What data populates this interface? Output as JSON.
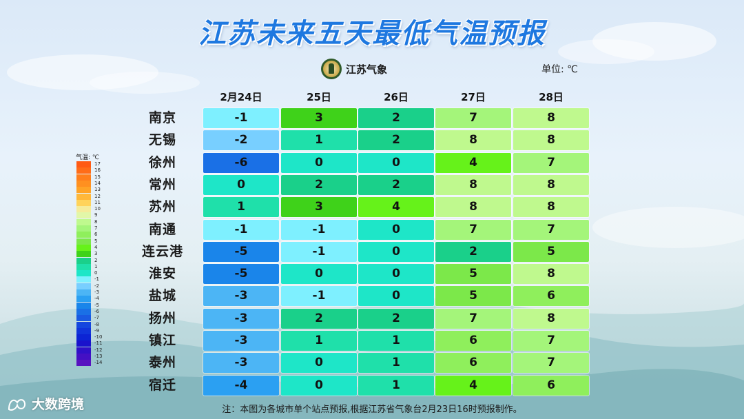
{
  "title": "江苏未来五天最低气温预报",
  "logo_text": "江苏气象",
  "unit_label": "单位: ℃",
  "legend_title": "气温: ℃",
  "note": "注：本图为各城市单个站点预报,根据江苏省气象台2月23日16时预报制作。",
  "brand": "大数跨境",
  "chart_data": {
    "type": "table",
    "columns": [
      "2月24日",
      "25日",
      "26日",
      "27日",
      "28日"
    ],
    "rows": [
      {
        "city": "南京",
        "values": [
          -1,
          3,
          2,
          7,
          8
        ]
      },
      {
        "city": "无锡",
        "values": [
          -2,
          1,
          2,
          8,
          8
        ]
      },
      {
        "city": "徐州",
        "values": [
          -6,
          0,
          0,
          4,
          7
        ]
      },
      {
        "city": "常州",
        "values": [
          0,
          2,
          2,
          8,
          8
        ]
      },
      {
        "city": "苏州",
        "values": [
          1,
          3,
          4,
          8,
          8
        ]
      },
      {
        "city": "南通",
        "values": [
          -1,
          -1,
          0,
          7,
          7
        ]
      },
      {
        "city": "连云港",
        "values": [
          -5,
          -1,
          0,
          2,
          5
        ]
      },
      {
        "city": "淮安",
        "values": [
          -5,
          0,
          0,
          5,
          8
        ]
      },
      {
        "city": "盐城",
        "values": [
          -3,
          -1,
          0,
          5,
          6
        ]
      },
      {
        "city": "扬州",
        "values": [
          -3,
          2,
          2,
          7,
          8
        ]
      },
      {
        "city": "镇江",
        "values": [
          -3,
          1,
          1,
          6,
          7
        ]
      },
      {
        "city": "泰州",
        "values": [
          -3,
          0,
          1,
          6,
          7
        ]
      },
      {
        "city": "宿迁",
        "values": [
          -4,
          0,
          1,
          4,
          6
        ]
      }
    ],
    "color_scale": [
      {
        "value": 17,
        "color": "#ff5a14"
      },
      {
        "value": 16,
        "color": "#ff6c18"
      },
      {
        "value": 15,
        "color": "#ff7e1c"
      },
      {
        "value": 14,
        "color": "#ff9020"
      },
      {
        "value": 13,
        "color": "#ffa326"
      },
      {
        "value": 12,
        "color": "#ffb83a"
      },
      {
        "value": 11,
        "color": "#ffd35a"
      },
      {
        "value": 10,
        "color": "#f5ec9a"
      },
      {
        "value": 9,
        "color": "#e2f7a8"
      },
      {
        "value": 8,
        "color": "#bff98e"
      },
      {
        "value": 7,
        "color": "#a4f57a"
      },
      {
        "value": 6,
        "color": "#8fef5c"
      },
      {
        "value": 5,
        "color": "#7ce84a"
      },
      {
        "value": 4,
        "color": "#66f21a"
      },
      {
        "value": 3,
        "color": "#3fd21a"
      },
      {
        "value": 2,
        "color": "#1ad08a"
      },
      {
        "value": 1,
        "color": "#1fe0aa"
      },
      {
        "value": 0,
        "color": "#1ee6c8"
      },
      {
        "value": -1,
        "color": "#7ef0ff"
      },
      {
        "value": -2,
        "color": "#78cfff"
      },
      {
        "value": -3,
        "color": "#4cb5f5"
      },
      {
        "value": -4,
        "color": "#2ba0f2"
      },
      {
        "value": -5,
        "color": "#1a85ea"
      },
      {
        "value": -6,
        "color": "#1a70e6"
      },
      {
        "value": -7,
        "color": "#1a5ae2"
      },
      {
        "value": -8,
        "color": "#1446de"
      },
      {
        "value": -9,
        "color": "#1034da"
      },
      {
        "value": -10,
        "color": "#0c24d4"
      },
      {
        "value": -11,
        "color": "#1a12cc"
      },
      {
        "value": -12,
        "color": "#3010c8"
      },
      {
        "value": -13,
        "color": "#4410c4"
      },
      {
        "value": -14,
        "color": "#5812c0"
      }
    ]
  }
}
